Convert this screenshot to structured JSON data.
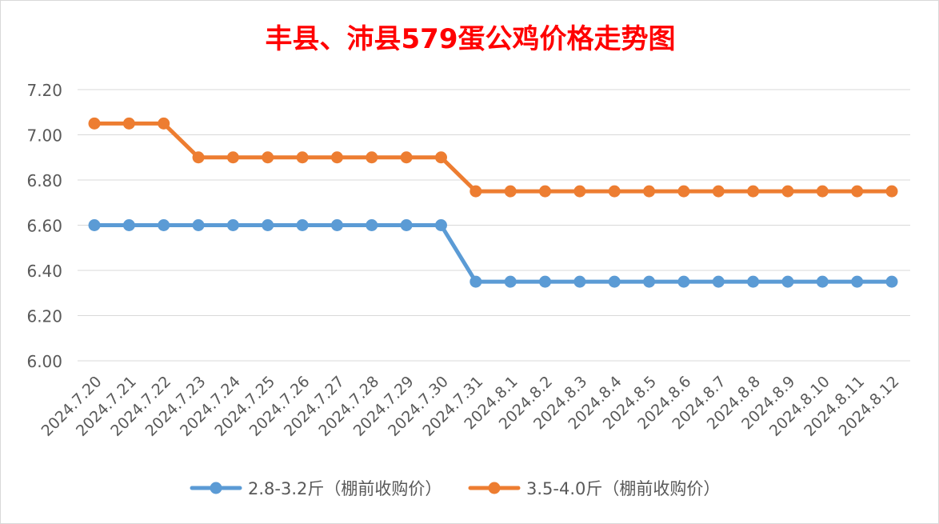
{
  "chart_data": {
    "type": "line",
    "title": "丰县、沛县579蛋公鸡价格走势图",
    "xlabel": "",
    "ylabel": "",
    "ylim": [
      6.0,
      7.2
    ],
    "y_ticks": [
      "6.00",
      "6.20",
      "6.40",
      "6.60",
      "6.80",
      "7.00",
      "7.20"
    ],
    "grid": true,
    "legend_position": "bottom",
    "categories": [
      "2024.7.20",
      "2024.7.21",
      "2024.7.22",
      "2024.7.23",
      "2024.7.24",
      "2024.7.25",
      "2024.7.26",
      "2024.7.27",
      "2024.7.28",
      "2024.7.29",
      "2024.7.30",
      "2024.7.31",
      "2024.8.1",
      "2024.8.2",
      "2024.8.3",
      "2024.8.4",
      "2024.8.5",
      "2024.8.6",
      "2024.8.7",
      "2024.8.8",
      "2024.8.9",
      "2024.8.10",
      "2024.8.11",
      "2024.8.12"
    ],
    "series": [
      {
        "name": "2.8-3.2斤（棚前收购价）",
        "color": "#5b9bd5",
        "values": [
          6.6,
          6.6,
          6.6,
          6.6,
          6.6,
          6.6,
          6.6,
          6.6,
          6.6,
          6.6,
          6.6,
          6.35,
          6.35,
          6.35,
          6.35,
          6.35,
          6.35,
          6.35,
          6.35,
          6.35,
          6.35,
          6.35,
          6.35,
          6.35
        ]
      },
      {
        "name": "3.5-4.0斤（棚前收购价）",
        "color": "#ed7d31",
        "values": [
          7.05,
          7.05,
          7.05,
          6.9,
          6.9,
          6.9,
          6.9,
          6.9,
          6.9,
          6.9,
          6.9,
          6.75,
          6.75,
          6.75,
          6.75,
          6.75,
          6.75,
          6.75,
          6.75,
          6.75,
          6.75,
          6.75,
          6.75,
          6.75
        ]
      }
    ],
    "title_color": "#ff0000"
  }
}
